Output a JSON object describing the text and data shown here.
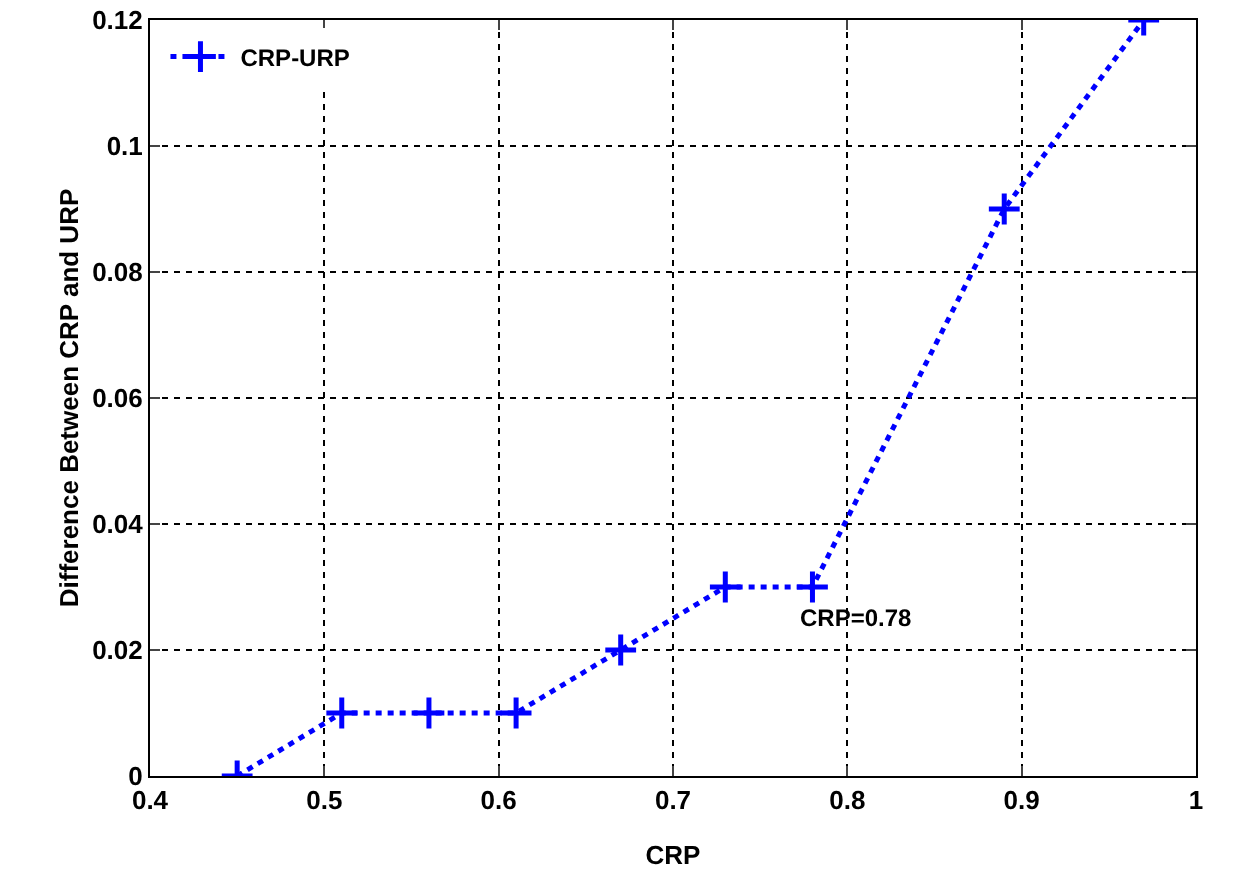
{
  "chart_data": {
    "type": "line",
    "xlabel": "CRP",
    "ylabel": "Difference Between CRP and URP",
    "x": [
      0.45,
      0.51,
      0.56,
      0.61,
      0.67,
      0.73,
      0.78,
      0.89,
      0.97
    ],
    "series": [
      {
        "name": "CRP-URP",
        "color": "#0000ff",
        "values": [
          0,
          0.01,
          0.01,
          0.01,
          0.02,
          0.03,
          0.03,
          0.09,
          0.12
        ]
      }
    ],
    "xlim": [
      0.4,
      1
    ],
    "xticks": [
      0.4,
      0.5,
      0.6,
      0.7,
      0.8,
      0.9,
      1
    ],
    "ylim": [
      0,
      0.12
    ],
    "yticks": [
      0,
      0.02,
      0.04,
      0.06,
      0.08,
      0.1,
      0.12
    ],
    "annotations": [
      {
        "text": "CRP=0.78",
        "x": 0.78,
        "y": 0.03
      }
    ],
    "grid": true,
    "legend": "top left",
    "marker": "cross",
    "line_style": "dotted"
  }
}
